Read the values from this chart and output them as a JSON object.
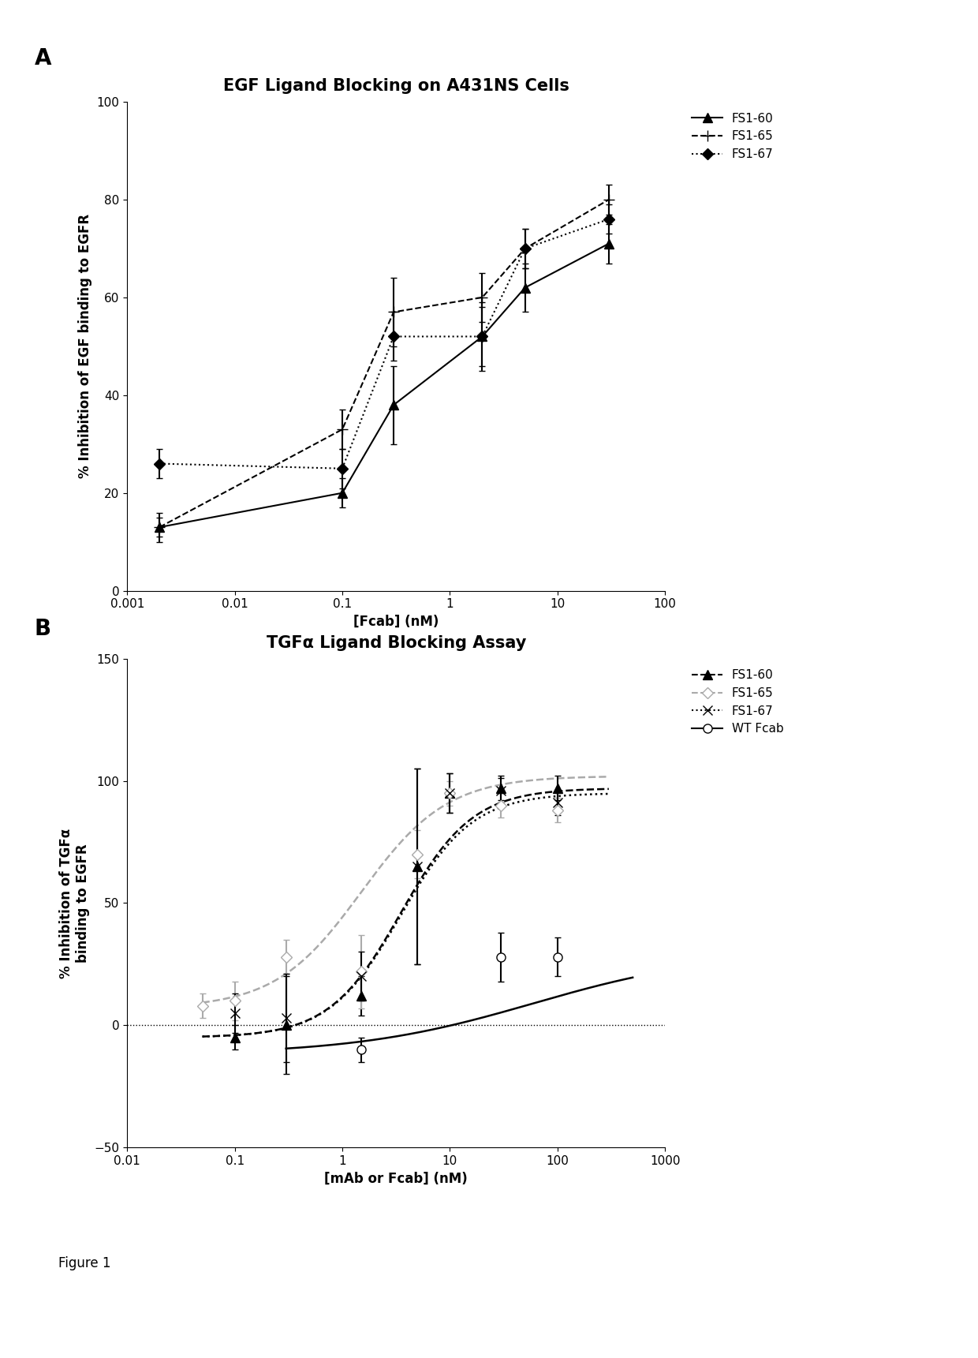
{
  "panel_A": {
    "title": "EGF Ligand Blocking on A431NS Cells",
    "xlabel": "[Fcab] (nM)",
    "ylabel": "% Inhibition of EGF binding to EGFR",
    "xlim": [
      0.001,
      100
    ],
    "ylim": [
      0,
      100
    ],
    "yticks": [
      0,
      20,
      40,
      60,
      80,
      100
    ],
    "xtick_vals": [
      0.001,
      0.01,
      0.1,
      1,
      10,
      100
    ],
    "xtick_labels": [
      "0.001",
      "0.01",
      "0.1",
      "1",
      "10",
      "100"
    ],
    "series": {
      "FS1-60": {
        "x": [
          0.002,
          0.1,
          0.3,
          2.0,
          5.0,
          30.0
        ],
        "y": [
          13,
          20,
          38,
          52,
          62,
          71
        ],
        "yerr": [
          2,
          3,
          8,
          7,
          5,
          4
        ],
        "marker": "^",
        "linestyle": "-",
        "color": "#000000",
        "ms": 8
      },
      "FS1-65": {
        "x": [
          0.002,
          0.1,
          0.3,
          2.0,
          5.0,
          30.0
        ],
        "y": [
          13,
          33,
          57,
          60,
          70,
          80
        ],
        "yerr": [
          3,
          4,
          7,
          5,
          4,
          3
        ],
        "marker": "+",
        "linestyle": "--",
        "color": "#000000",
        "ms": 10
      },
      "FS1-67": {
        "x": [
          0.002,
          0.1,
          0.3,
          2.0,
          5.0,
          30.0
        ],
        "y": [
          26,
          25,
          52,
          52,
          70,
          76
        ],
        "yerr": [
          3,
          4,
          5,
          6,
          4,
          3
        ],
        "marker": "D",
        "linestyle": ":",
        "color": "#000000",
        "ms": 7
      }
    }
  },
  "panel_B": {
    "title": "TGFα Ligand Blocking Assay",
    "xlabel": "[mAb or Fcab] (nM)",
    "ylabel": "% Inhibition of TGFα\nbinding to EGFR",
    "xlim": [
      0.01,
      1000
    ],
    "ylim": [
      -50,
      150
    ],
    "yticks": [
      -50,
      0,
      50,
      100,
      150
    ],
    "xtick_vals": [
      0.01,
      0.1,
      1,
      10,
      100,
      1000
    ],
    "xtick_labels": [
      "0.01",
      "0.1",
      "1",
      "10",
      "100",
      "1000"
    ],
    "series": {
      "FS1-60": {
        "x": [
          0.1,
          0.3,
          1.5,
          5.0,
          10.0,
          30.0,
          100.0
        ],
        "y": [
          -5,
          0,
          12,
          65,
          95,
          97,
          97
        ],
        "yerr": [
          5,
          20,
          8,
          40,
          8,
          5,
          5
        ],
        "marker": "^",
        "linestyle": "--",
        "color": "#000000",
        "ms": 8
      },
      "FS1-65": {
        "x": [
          0.05,
          0.1,
          0.3,
          1.5,
          5.0,
          10.0,
          30.0,
          100.0
        ],
        "y": [
          8,
          10,
          28,
          22,
          70,
          95,
          90,
          88
        ],
        "yerr": [
          5,
          8,
          7,
          15,
          10,
          5,
          5,
          5
        ],
        "marker": "o",
        "linestyle": "--",
        "color": "#aaaaaa",
        "ms": 7
      },
      "FS1-67": {
        "x": [
          0.1,
          0.3,
          1.5,
          5.0,
          10.0,
          30.0,
          100.0
        ],
        "y": [
          5,
          3,
          20,
          65,
          95,
          96,
          91
        ],
        "yerr": [
          8,
          18,
          10,
          40,
          8,
          5,
          5
        ],
        "marker": "x",
        "linestyle": ":",
        "color": "#000000",
        "ms": 8
      },
      "WT Fcab": {
        "x": [
          1.5,
          30.0,
          100.0
        ],
        "y": [
          -10,
          28,
          28
        ],
        "yerr": [
          5,
          10,
          8
        ],
        "marker": "o",
        "linestyle": "-",
        "color": "#000000",
        "ms": 8
      }
    }
  },
  "figure_label": "Figure 1",
  "background_color": "#ffffff",
  "text_color": "#000000",
  "title_fontsize": 15,
  "label_fontsize": 12,
  "tick_fontsize": 11,
  "legend_fontsize": 11
}
